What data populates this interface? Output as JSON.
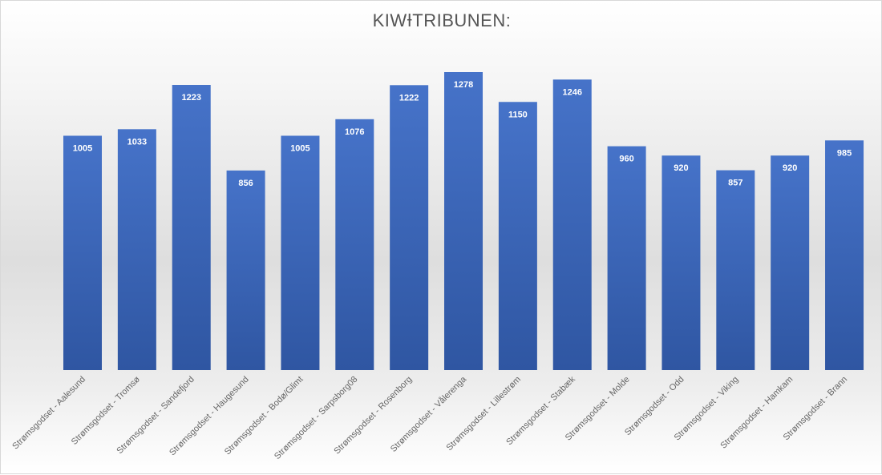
{
  "chart_data": {
    "type": "bar",
    "title": "KIWƗTRIBUNEN:",
    "categories": [
      "Strømsgodset - Aalesund",
      "Strømsgodset - Tromsø",
      "Strømsgodset - Sandefjord",
      "Strømsgodset - Haugesund",
      "Strømsgodset - Bodø/Glimt",
      "Strømsgodset - Sarpsborg08",
      "Strømsgodset - Rosenborg",
      "Strømsgodset - Vålerenga",
      "Strømsgodset - Lillestrøm",
      "Strømsgodset - Stabæk",
      "Strømsgodset - Molde",
      "Strømsgodset - Odd",
      "Strømsgodset - Viking",
      "Strømsgodset - Hamkam",
      "Strømsgodset - Brann"
    ],
    "values": [
      1005,
      1033,
      1223,
      856,
      1005,
      1076,
      1222,
      1278,
      1150,
      1246,
      960,
      920,
      857,
      920,
      985
    ],
    "ylim": [
      0,
      1278
    ],
    "grid": false,
    "data_labels": true,
    "bar_color_top": "#4673c9",
    "bar_color_bottom": "#2f56a2"
  }
}
